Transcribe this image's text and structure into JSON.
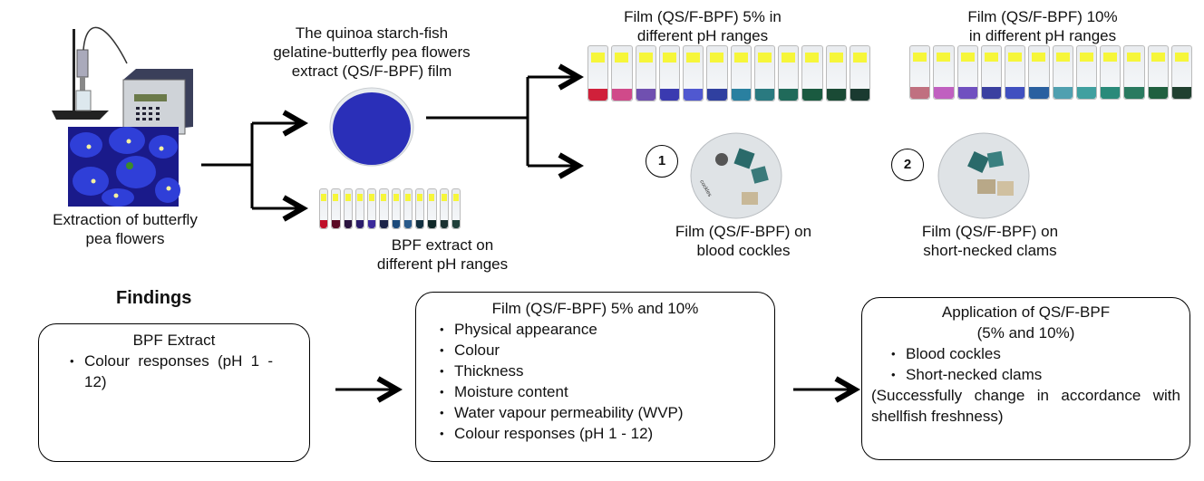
{
  "extraction": {
    "label_line1": "Extraction of butterfly",
    "label_line2": "pea flowers"
  },
  "film": {
    "title_line1": "The quinoa starch-fish",
    "title_line2": "gelatine-butterfly pea flowers",
    "title_line3": "extract (QS/F-BPF) film",
    "color": "#2a2fb8"
  },
  "bpf_extract": {
    "label_line1": "BPF extract on",
    "label_line2": "different pH ranges",
    "vial_colors": [
      "#c0102a",
      "#5a0a25",
      "#2b1440",
      "#2a1c6a",
      "#3b2a9a",
      "#1c2448",
      "#1c4a7a",
      "#2a5a8a",
      "#123040",
      "#102828",
      "#1a3030",
      "#20403a"
    ]
  },
  "film5": {
    "title_line1": "Film (QS/F-BPF) 5% in",
    "title_line2": "different pH ranges",
    "vial_colors": [
      "#d0203a",
      "#d04a8a",
      "#7050b0",
      "#3a3ab0",
      "#5058d0",
      "#3040a0",
      "#2a80a0",
      "#2a7a80",
      "#206a5a",
      "#1a5a40",
      "#1a4a35",
      "#1a3a30"
    ]
  },
  "film10": {
    "title_line1": "Film (QS/F-BPF) 10%",
    "title_line2": "in different pH ranges",
    "vial_colors": [
      "#c07080",
      "#c060c0",
      "#7050c0",
      "#3a40a0",
      "#4050c0",
      "#2a60a0",
      "#50a0b0",
      "#40a0a0",
      "#2a8a7a",
      "#2a7a60",
      "#206040",
      "#204030"
    ]
  },
  "app1": {
    "number": "1",
    "label_line1": "Film (QS/F-BPF) on",
    "label_line2": "blood cockles"
  },
  "app2": {
    "number": "2",
    "label_line1": "Film (QS/F-BPF) on",
    "label_line2": "short-necked clams"
  },
  "findings": {
    "heading": "Findings",
    "box1": {
      "title": "BPF Extract",
      "items": [
        "Colour responses (pH 1 - 12)"
      ]
    },
    "box2": {
      "title": "Film (QS/F-BPF) 5% and 10%",
      "items": [
        "Physical appearance",
        "Colour",
        "Thickness",
        "Moisture content",
        "Water vapour permeability (WVP)",
        "Colour responses (pH 1 - 12)"
      ]
    },
    "box3": {
      "title_line1": "Application of QS/F-BPF",
      "title_line2": "(5% and 10%)",
      "items": [
        "Blood cockles",
        "Short-necked clams"
      ],
      "note": "(Successfully change in accordance with shellfish freshness)"
    }
  }
}
